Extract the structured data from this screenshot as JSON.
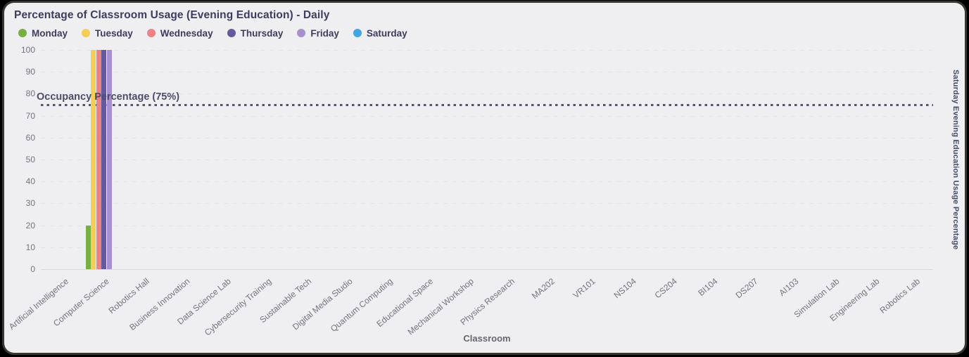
{
  "card": {
    "title": "Percentage of Classroom Usage (Evening Education) - Daily"
  },
  "colors": {
    "frame": "#000000",
    "card_background": "#efeff2",
    "title_text": "#3c3c5e",
    "axis_text": "#73737f",
    "grid": "#e2e2e8",
    "axis_line": "#d8d8de",
    "reference_line": "#55556b"
  },
  "chart_data": {
    "type": "bar",
    "title": "Percentage of Classroom Usage (Evening Education) - Daily",
    "xlabel": "Classroom",
    "ylabel_right": "Saturday Evening Education Usage Percentage",
    "ylim": [
      0,
      100
    ],
    "y_ticks": [
      0,
      10,
      20,
      30,
      40,
      50,
      60,
      70,
      80,
      90,
      100
    ],
    "grid": true,
    "legend_position": "top",
    "categories": [
      "Artificial Intelligence",
      "Computer Science",
      "Robotics Hall",
      "Business Innovation",
      "Data Science Lab",
      "Cybersecurity Training",
      "Sustainable Tech",
      "Digital Media Studio",
      "Quantum Computing",
      "Educational Space",
      "Mechanical Workshop",
      "Physics Research",
      "MA202",
      "VR101",
      "NS104",
      "CS204",
      "BI104",
      "DS207",
      "AI103",
      "Simulation Lab",
      "Engineering Lab",
      "Robotics Lab"
    ],
    "series": [
      {
        "name": "Monday",
        "color": "#76b041",
        "values": [
          0,
          20,
          0,
          0,
          0,
          0,
          0,
          0,
          0,
          0,
          0,
          0,
          0,
          0,
          0,
          0,
          0,
          0,
          0,
          0,
          0,
          0
        ]
      },
      {
        "name": "Tuesday",
        "color": "#f3cf55",
        "values": [
          0,
          100,
          0,
          0,
          0,
          0,
          0,
          0,
          0,
          0,
          0,
          0,
          0,
          0,
          0,
          0,
          0,
          0,
          0,
          0,
          0,
          0
        ]
      },
      {
        "name": "Wednesday",
        "color": "#ed8184",
        "values": [
          0,
          100,
          0,
          0,
          0,
          0,
          0,
          0,
          0,
          0,
          0,
          0,
          0,
          0,
          0,
          0,
          0,
          0,
          0,
          0,
          0,
          0
        ]
      },
      {
        "name": "Thursday",
        "color": "#635a9e",
        "values": [
          0,
          100,
          0,
          0,
          0,
          0,
          0,
          0,
          0,
          0,
          0,
          0,
          0,
          0,
          0,
          0,
          0,
          0,
          0,
          0,
          0,
          0
        ]
      },
      {
        "name": "Friday",
        "color": "#a88fcd",
        "values": [
          0,
          100,
          0,
          0,
          0,
          0,
          0,
          0,
          0,
          0,
          0,
          0,
          0,
          0,
          0,
          0,
          0,
          0,
          0,
          0,
          0,
          0
        ]
      },
      {
        "name": "Saturday",
        "color": "#47a4e3",
        "values": [
          0,
          0,
          0,
          0,
          0,
          0,
          0,
          0,
          0,
          0,
          0,
          0,
          0,
          0,
          0,
          0,
          0,
          0,
          0,
          0,
          0,
          0
        ]
      }
    ],
    "reference_line": {
      "label": "Occupancy Percentage (75%)",
      "value": 75
    }
  }
}
